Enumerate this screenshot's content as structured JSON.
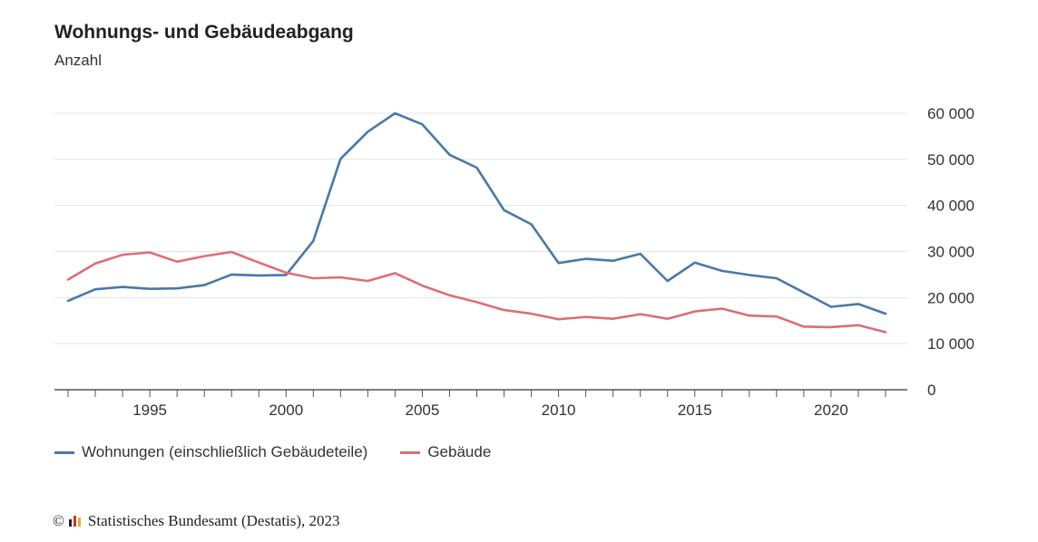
{
  "title": "Wohnungs- und Gebäudeabgang",
  "subtitle": "Anzahl",
  "source": {
    "copyright_symbol": "©",
    "text": "Statistisches Bundesamt (Destatis), 2023"
  },
  "chart_data": {
    "type": "line",
    "title": "Wohnungs- und Gebäudeabgang",
    "ylabel": "Anzahl",
    "xlabel": "",
    "x": [
      1992,
      1993,
      1994,
      1995,
      1996,
      1997,
      1998,
      1999,
      2000,
      2001,
      2002,
      2003,
      2004,
      2005,
      2006,
      2007,
      2008,
      2009,
      2010,
      2011,
      2012,
      2013,
      2014,
      2015,
      2016,
      2017,
      2018,
      2019,
      2020,
      2021,
      2022
    ],
    "xlim": [
      1991.5,
      2022.8
    ],
    "ylim": [
      0,
      60000
    ],
    "xticks": [
      1995,
      2000,
      2005,
      2010,
      2015,
      2020
    ],
    "yticks": [
      0,
      10000,
      20000,
      30000,
      40000,
      50000,
      60000
    ],
    "ytick_labels": [
      "0",
      "10 000",
      "20 000",
      "30 000",
      "40 000",
      "50 000",
      "60 000"
    ],
    "grid": "horizontal",
    "y_axis_position": "right",
    "legend_position": "bottom-left",
    "series": [
      {
        "name": "Wohnungen (einschließlich Gebäudeteile)",
        "color": "#4a78a8",
        "values": [
          19300,
          21800,
          22300,
          21900,
          22000,
          22700,
          25000,
          24800,
          24900,
          32300,
          50100,
          56000,
          60000,
          57600,
          51000,
          48200,
          39000,
          35900,
          27500,
          28400,
          28000,
          29500,
          23600,
          27600,
          25800,
          24900,
          24200,
          21100,
          18000,
          18600,
          16500
        ]
      },
      {
        "name": "Gebäude",
        "color": "#dc6e7a",
        "values": [
          23900,
          27400,
          29300,
          29800,
          27800,
          29000,
          29900,
          27600,
          25400,
          24200,
          24400,
          23600,
          25300,
          22600,
          20500,
          19000,
          17300,
          16500,
          15300,
          15800,
          15400,
          16400,
          15400,
          17000,
          17600,
          16100,
          15900,
          13700,
          13600,
          14000,
          12500
        ]
      }
    ]
  }
}
